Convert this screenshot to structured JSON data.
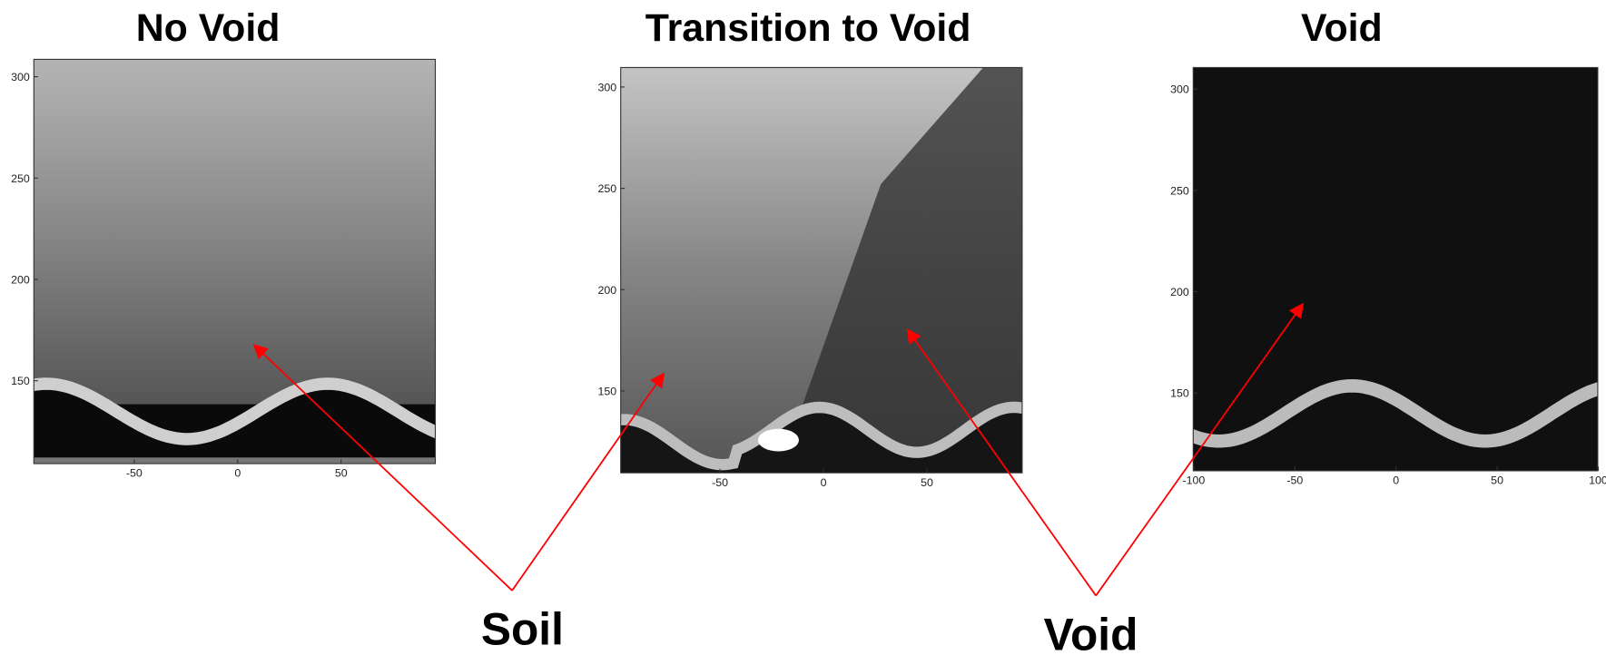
{
  "panels": [
    {
      "title": "No Void",
      "yticks": [
        300,
        250,
        200,
        150
      ],
      "xticks": [
        -50,
        0,
        50
      ]
    },
    {
      "title": "Transition to  Void",
      "yticks": [
        300,
        250,
        200,
        150
      ],
      "xticks": [
        -50,
        0,
        50
      ]
    },
    {
      "title": "Void",
      "yticks": [
        300,
        250,
        200,
        150
      ],
      "xticks": [
        -100,
        -50,
        0,
        50,
        100
      ]
    }
  ],
  "annotations": [
    "Soil",
    "Void"
  ]
}
